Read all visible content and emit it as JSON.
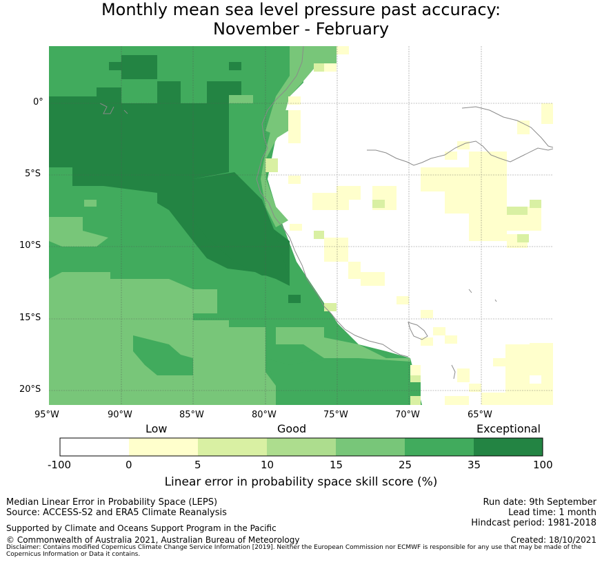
{
  "title": {
    "line1": "Monthly mean sea level pressure past accuracy:",
    "line2": "November - February"
  },
  "map": {
    "lon_ticks": [
      "95°W",
      "90°W",
      "85°W",
      "80°W",
      "75°W",
      "70°W",
      "65°W"
    ],
    "lat_ticks": [
      "0°",
      "5°S",
      "10°S",
      "15°S",
      "20°S"
    ]
  },
  "colorbar": {
    "category_labels": [
      "Low",
      "Good",
      "Exceptional"
    ],
    "ticks": [
      "-100",
      "0",
      "5",
      "10",
      "15",
      "25",
      "35",
      "100"
    ],
    "colors": [
      "#ffffff",
      "#ffffcc",
      "#d9f0a3",
      "#addd8e",
      "#78c679",
      "#41ab5d",
      "#238443"
    ],
    "title": "Linear error in probability space skill score (%)"
  },
  "footer": {
    "metric": "Median Linear Error in Probability Space (LEPS)",
    "source": "Source: ACCESS-S2 and ERA5 Climate Reanalysis",
    "support": "Supported by Climate and Oceans Support Program in the Pacific",
    "copyright": "© Commonwealth of Australia 2021, Australian Bureau of Meteorology",
    "disclaimer_line1": "Disclaimer: Contains modified Copernicus Climate Change Service Information [2019]. Neither the European Commission nor ECMWF is responsible for any use that may be made of the",
    "disclaimer_line2": "Copernicus Information or Data it contains.",
    "run_date": "Run date: 9th September",
    "lead_time": "Lead time: 1 month",
    "hindcast": "Hindcast period: 1981-2018",
    "created": "Created: 18/10/2021"
  }
}
